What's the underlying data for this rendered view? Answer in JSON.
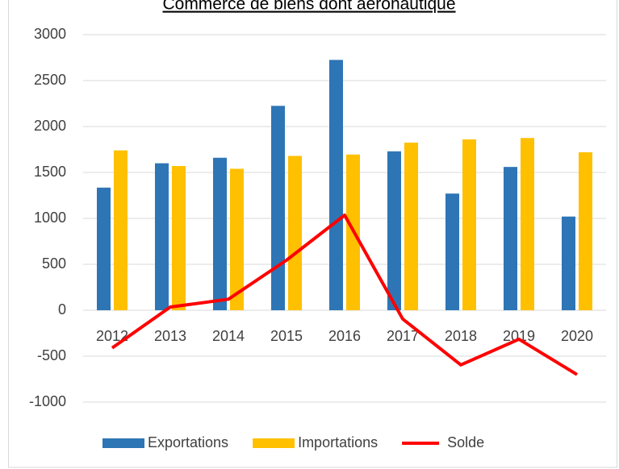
{
  "chart_data": {
    "type": "bar",
    "title": "Commerce de biens dont aéronautique",
    "categories": [
      "2012",
      "2013",
      "2014",
      "2015",
      "2016",
      "2017",
      "2018",
      "2019",
      "2020"
    ],
    "series": [
      {
        "name": "Exportations",
        "type": "bar",
        "color": "#2e75b6",
        "values": [
          1335,
          1600,
          1660,
          2225,
          2725,
          1730,
          1270,
          1560,
          1020
        ]
      },
      {
        "name": "Importations",
        "type": "bar",
        "color": "#ffc000",
        "values": [
          1740,
          1570,
          1540,
          1680,
          1695,
          1825,
          1860,
          1875,
          1720
        ]
      },
      {
        "name": "Solde",
        "type": "line",
        "color": "#ff0000",
        "values": [
          -410,
          35,
          120,
          545,
          1035,
          -95,
          -595,
          -315,
          -700
        ]
      }
    ],
    "ylim": [
      -1000,
      3000
    ],
    "yticks": [
      -1000,
      -500,
      0,
      500,
      1000,
      1500,
      2000,
      2500,
      3000
    ],
    "grid": true,
    "legend": "bottom"
  }
}
